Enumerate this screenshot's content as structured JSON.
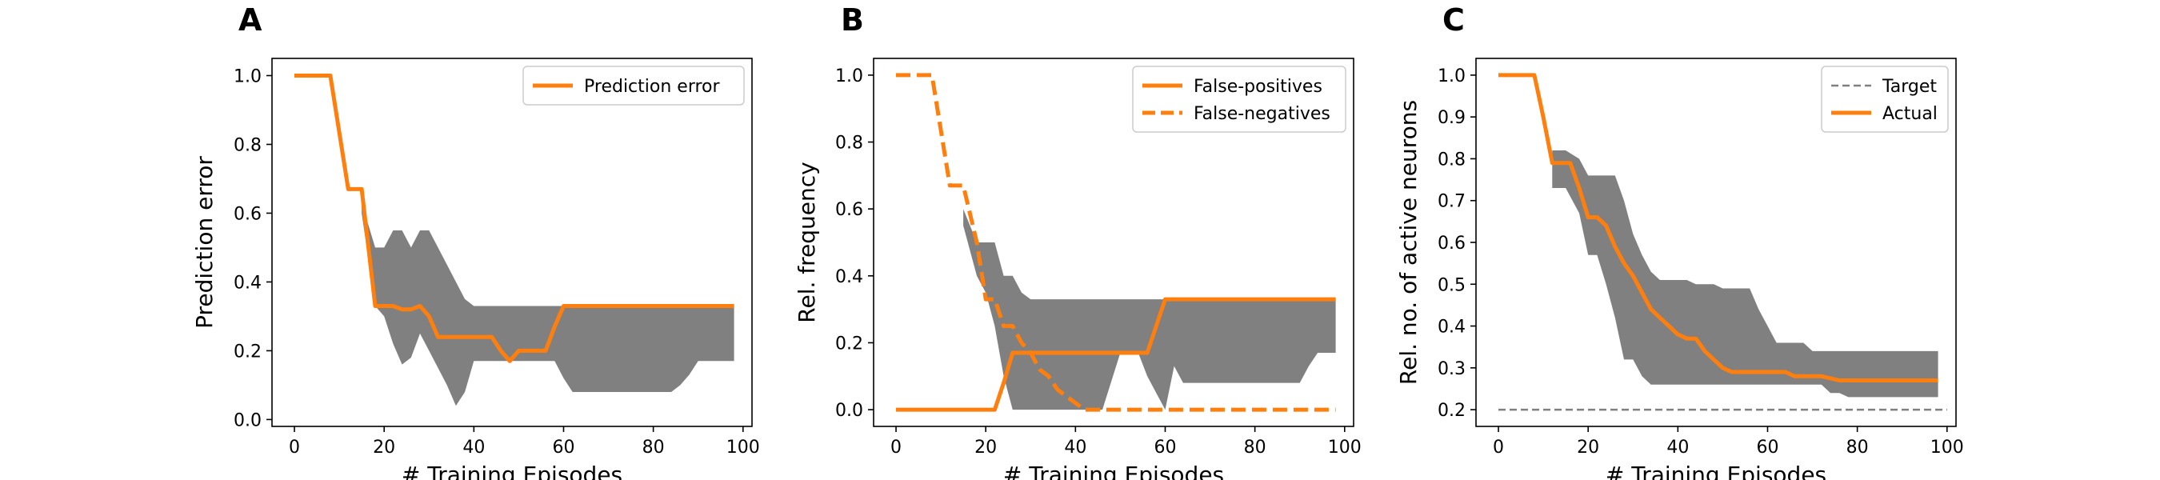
{
  "colors": {
    "series": "#ff7f0e",
    "band": "#808080",
    "target": "#808080"
  },
  "chart_data": [
    {
      "panel": "A",
      "type": "line",
      "xlabel": "# Training Episodes",
      "ylabel": "Prediction error",
      "xlim": [
        -5,
        102
      ],
      "ylim": [
        -0.02,
        1.05
      ],
      "xticks": [
        0,
        20,
        40,
        60,
        80,
        100
      ],
      "yticks": [
        0.0,
        0.2,
        0.4,
        0.6,
        0.8,
        1.0
      ],
      "ytick_decimals": 1,
      "legend": "upper-right",
      "band": {
        "x": [
          15,
          18,
          20,
          22,
          24,
          26,
          28,
          30,
          32,
          34,
          36,
          38,
          40,
          42,
          44,
          46,
          48,
          50,
          52,
          54,
          56,
          58,
          60,
          62,
          64,
          66,
          68,
          70,
          72,
          74,
          76,
          78,
          80,
          82,
          84,
          86,
          88,
          90,
          92,
          94,
          96,
          98
        ],
        "upper": [
          0.63,
          0.5,
          0.5,
          0.55,
          0.55,
          0.5,
          0.55,
          0.55,
          0.5,
          0.45,
          0.4,
          0.35,
          0.33,
          0.33,
          0.33,
          0.33,
          0.33,
          0.33,
          0.33,
          0.33,
          0.33,
          0.33,
          0.33,
          0.33,
          0.33,
          0.33,
          0.33,
          0.33,
          0.33,
          0.33,
          0.33,
          0.33,
          0.33,
          0.33,
          0.33,
          0.33,
          0.33,
          0.33,
          0.33,
          0.33,
          0.33,
          0.33
        ],
        "lower": [
          0.6,
          0.33,
          0.3,
          0.22,
          0.16,
          0.18,
          0.25,
          0.2,
          0.15,
          0.1,
          0.04,
          0.08,
          0.17,
          0.17,
          0.17,
          0.17,
          0.17,
          0.17,
          0.17,
          0.17,
          0.17,
          0.17,
          0.12,
          0.08,
          0.08,
          0.08,
          0.08,
          0.08,
          0.08,
          0.08,
          0.08,
          0.08,
          0.08,
          0.08,
          0.08,
          0.1,
          0.13,
          0.17,
          0.17,
          0.17,
          0.17,
          0.17
        ]
      },
      "series": [
        {
          "name": "Prediction error",
          "style": "solid",
          "x": [
            0,
            8,
            12,
            15,
            18,
            20,
            22,
            24,
            26,
            28,
            30,
            32,
            34,
            36,
            38,
            40,
            42,
            44,
            46,
            48,
            50,
            52,
            54,
            56,
            58,
            60,
            62,
            98
          ],
          "y": [
            1.0,
            1.0,
            0.67,
            0.67,
            0.33,
            0.33,
            0.33,
            0.32,
            0.32,
            0.33,
            0.3,
            0.24,
            0.24,
            0.24,
            0.24,
            0.24,
            0.24,
            0.24,
            0.2,
            0.17,
            0.2,
            0.2,
            0.2,
            0.2,
            0.27,
            0.33,
            0.33,
            0.33
          ]
        }
      ]
    },
    {
      "panel": "B",
      "type": "line",
      "xlabel": "# Training Episodes",
      "ylabel": "Rel. frequency",
      "xlim": [
        -5,
        102
      ],
      "ylim": [
        -0.05,
        1.05
      ],
      "xticks": [
        0,
        20,
        40,
        60,
        80,
        100
      ],
      "yticks": [
        0.0,
        0.2,
        0.4,
        0.6,
        0.8,
        1.0
      ],
      "ytick_decimals": 1,
      "legend": "upper-right",
      "band": {
        "x": [
          15,
          18,
          20,
          22,
          24,
          26,
          28,
          30,
          34,
          40,
          46,
          50,
          54,
          56,
          58,
          60,
          62,
          64,
          68,
          72,
          76,
          80,
          84,
          88,
          90,
          92,
          94,
          96,
          98
        ],
        "upper": [
          0.6,
          0.5,
          0.5,
          0.5,
          0.4,
          0.4,
          0.35,
          0.33,
          0.33,
          0.33,
          0.33,
          0.33,
          0.33,
          0.33,
          0.33,
          0.33,
          0.33,
          0.33,
          0.33,
          0.33,
          0.33,
          0.33,
          0.33,
          0.33,
          0.33,
          0.33,
          0.33,
          0.33,
          0.33
        ],
        "lower": [
          0.55,
          0.4,
          0.35,
          0.25,
          0.1,
          0.0,
          0.0,
          0.0,
          0.0,
          0.0,
          0.0,
          0.17,
          0.17,
          0.1,
          0.05,
          0.0,
          0.13,
          0.08,
          0.08,
          0.08,
          0.08,
          0.08,
          0.08,
          0.08,
          0.08,
          0.13,
          0.17,
          0.17,
          0.17
        ]
      },
      "series": [
        {
          "name": "False-positives",
          "style": "solid",
          "x": [
            0,
            22,
            24,
            26,
            30,
            40,
            50,
            54,
            56,
            58,
            60,
            98
          ],
          "y": [
            0.0,
            0.0,
            0.08,
            0.17,
            0.17,
            0.17,
            0.17,
            0.17,
            0.17,
            0.25,
            0.33,
            0.33
          ]
        },
        {
          "name": "False-negatives",
          "style": "dashed",
          "x": [
            0,
            8,
            12,
            15,
            18,
            20,
            22,
            24,
            26,
            28,
            30,
            32,
            34,
            36,
            38,
            40,
            42,
            44,
            98
          ],
          "y": [
            1.0,
            1.0,
            0.67,
            0.67,
            0.5,
            0.33,
            0.33,
            0.25,
            0.25,
            0.2,
            0.17,
            0.12,
            0.1,
            0.06,
            0.04,
            0.02,
            0.0,
            0.0,
            0.0
          ]
        }
      ]
    },
    {
      "panel": "C",
      "type": "line",
      "xlabel": "# Training Episodes",
      "ylabel": "Rel. no. of active neurons",
      "xlim": [
        -5,
        102
      ],
      "ylim": [
        0.16,
        1.04
      ],
      "xticks": [
        0,
        20,
        40,
        60,
        80,
        100
      ],
      "yticks": [
        0.2,
        0.3,
        0.4,
        0.5,
        0.6,
        0.7,
        0.8,
        0.9,
        1.0
      ],
      "ytick_decimals": 1,
      "legend": "upper-right",
      "band": {
        "x": [
          12,
          15,
          18,
          20,
          22,
          24,
          26,
          28,
          30,
          32,
          34,
          36,
          38,
          40,
          42,
          44,
          46,
          48,
          50,
          52,
          54,
          56,
          58,
          60,
          62,
          64,
          66,
          68,
          70,
          72,
          74,
          76,
          78,
          80,
          82,
          84,
          86,
          88,
          90,
          92,
          94,
          96,
          98
        ],
        "upper": [
          0.82,
          0.82,
          0.8,
          0.76,
          0.76,
          0.76,
          0.76,
          0.7,
          0.62,
          0.57,
          0.53,
          0.51,
          0.51,
          0.51,
          0.51,
          0.5,
          0.5,
          0.5,
          0.49,
          0.49,
          0.49,
          0.49,
          0.44,
          0.4,
          0.36,
          0.36,
          0.36,
          0.36,
          0.34,
          0.34,
          0.34,
          0.34,
          0.34,
          0.34,
          0.34,
          0.34,
          0.34,
          0.34,
          0.34,
          0.34,
          0.34,
          0.34,
          0.34
        ],
        "lower": [
          0.73,
          0.73,
          0.67,
          0.57,
          0.57,
          0.5,
          0.42,
          0.32,
          0.32,
          0.28,
          0.26,
          0.26,
          0.26,
          0.26,
          0.26,
          0.26,
          0.26,
          0.26,
          0.26,
          0.26,
          0.26,
          0.26,
          0.26,
          0.26,
          0.26,
          0.26,
          0.26,
          0.26,
          0.26,
          0.26,
          0.24,
          0.24,
          0.23,
          0.23,
          0.23,
          0.23,
          0.23,
          0.23,
          0.23,
          0.23,
          0.23,
          0.23,
          0.23
        ]
      },
      "series": [
        {
          "name": "Target",
          "style": "dashed-thin",
          "color": "#808080",
          "x": [
            0,
            100
          ],
          "y": [
            0.2,
            0.2
          ]
        },
        {
          "name": "Actual",
          "style": "solid",
          "x": [
            0,
            8,
            10,
            12,
            16,
            18,
            20,
            22,
            24,
            26,
            28,
            30,
            32,
            34,
            36,
            38,
            40,
            42,
            44,
            46,
            48,
            50,
            52,
            56,
            60,
            64,
            66,
            68,
            70,
            72,
            76,
            80,
            98
          ],
          "y": [
            1.0,
            1.0,
            0.9,
            0.79,
            0.79,
            0.73,
            0.66,
            0.66,
            0.64,
            0.59,
            0.55,
            0.52,
            0.48,
            0.44,
            0.42,
            0.4,
            0.38,
            0.37,
            0.37,
            0.34,
            0.32,
            0.3,
            0.29,
            0.29,
            0.29,
            0.29,
            0.28,
            0.28,
            0.28,
            0.28,
            0.27,
            0.27,
            0.27
          ]
        }
      ]
    }
  ]
}
